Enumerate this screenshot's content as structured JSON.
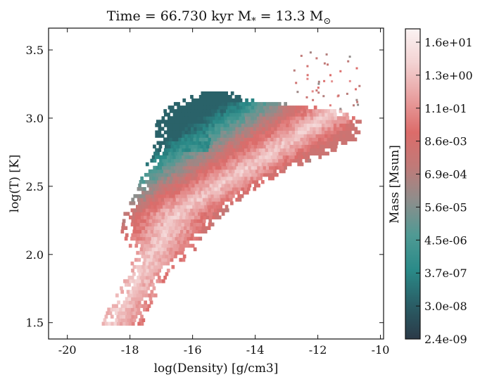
{
  "chart_data": {
    "type": "heatmap",
    "title": "Time = 66.730 kyr    M$_*$ = 13.3 M$_\\odot$",
    "title_display": "Time = 66.730 kyr    M",
    "title_star_sub": "*",
    "title_mid": " = 13.3 M",
    "title_sun_sub": "⊙",
    "xlabel": "log(Density) [g/cm3]",
    "ylabel": "log(T) [K]",
    "xlim": [
      -20.6,
      -9.9
    ],
    "ylim": [
      1.38,
      3.66
    ],
    "x_ticks": [
      -20,
      -18,
      -16,
      -14,
      -12,
      -10
    ],
    "x_tick_labels": [
      "-20",
      "-18",
      "-16",
      "-14",
      "-12",
      "-10"
    ],
    "y_ticks": [
      1.5,
      2.0,
      2.5,
      3.0,
      3.5
    ],
    "y_tick_labels": [
      "1.5",
      "2.0",
      "2.5",
      "3.0",
      "3.5"
    ],
    "colorbar": {
      "label": "Mass [Msun]",
      "scale": "log",
      "tick_labels": [
        "2.4e-09",
        "3.0e-08",
        "3.7e-07",
        "4.5e-06",
        "5.6e-05",
        "6.9e-04",
        "8.6e-03",
        "1.1e-01",
        "1.3e+00",
        "1.6e+01"
      ],
      "colors": [
        "#2b3a48",
        "#2a5e66",
        "#2a8a88",
        "#4f9a94",
        "#8c8e8c",
        "#c07a78",
        "#dc6c6a",
        "#e8a0a0",
        "#f3d2d2",
        "#fbf3f3"
      ]
    },
    "grid": false
  }
}
